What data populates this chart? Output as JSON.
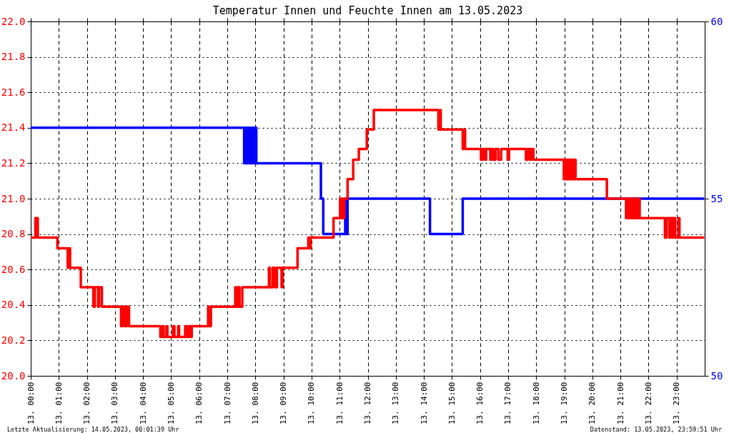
{
  "chart_data": {
    "type": "step",
    "title": "Temperatur Innen und Feuchte Innen am 13.05.2023",
    "annotations": [
      "Letzte Aktualisierung: 14.05.2023, 00:01:39 Uhr",
      "Datenstand: 13.05.2023, 23:59:51 Uhr"
    ],
    "xlim": [
      "2023-05-13T00:00",
      "2023-05-14T00:00"
    ],
    "xticks": [
      {
        "value": "2023-05-13T00:00",
        "label": "13. 00:00"
      },
      {
        "value": "2023-05-13T01:00",
        "label": "13. 01:00"
      },
      {
        "value": "2023-05-13T02:00",
        "label": "13. 02:00"
      },
      {
        "value": "2023-05-13T03:00",
        "label": "13. 03:00"
      },
      {
        "value": "2023-05-13T04:00",
        "label": "13. 04:00"
      },
      {
        "value": "2023-05-13T05:00",
        "label": "13. 05:00"
      },
      {
        "value": "2023-05-13T06:00",
        "label": "13. 06:00"
      },
      {
        "value": "2023-05-13T07:00",
        "label": "13. 07:00"
      },
      {
        "value": "2023-05-13T08:00",
        "label": "13. 08:00"
      },
      {
        "value": "2023-05-13T09:00",
        "label": "13. 09:00"
      },
      {
        "value": "2023-05-13T10:00",
        "label": "13. 10:00"
      },
      {
        "value": "2023-05-13T11:00",
        "label": "13. 11:00"
      },
      {
        "value": "2023-05-13T12:00",
        "label": "13. 12:00"
      },
      {
        "value": "2023-05-13T13:00",
        "label": "13. 13:00"
      },
      {
        "value": "2023-05-13T14:00",
        "label": "13. 14:00"
      },
      {
        "value": "2023-05-13T15:00",
        "label": "13. 15:00"
      },
      {
        "value": "2023-05-13T16:00",
        "label": "13. 16:00"
      },
      {
        "value": "2023-05-13T17:00",
        "label": "13. 17:00"
      },
      {
        "value": "2023-05-13T18:00",
        "label": "13. 18:00"
      },
      {
        "value": "2023-05-13T19:00",
        "label": "13. 19:00"
      },
      {
        "value": "2023-05-13T20:00",
        "label": "13. 20:00"
      },
      {
        "value": "2023-05-13T21:00",
        "label": "13. 21:00"
      },
      {
        "value": "2023-05-13T22:00",
        "label": "13. 22:00"
      },
      {
        "value": "2023-05-13T23:00",
        "label": "13. 23:00"
      }
    ],
    "ylim": [
      20,
      22
    ],
    "yticks": [
      {
        "value": 20,
        "label": "20.0"
      },
      20.2,
      20.4,
      20.6,
      20.8,
      {
        "value": 21,
        "label": "21.0"
      },
      21.2,
      21.4,
      21.6,
      21.8,
      {
        "value": 22,
        "label": "22.0"
      }
    ],
    "y2lim": [
      50,
      60
    ],
    "y2ticks": [
      50,
      55,
      60
    ],
    "grid": true,
    "series": [
      {
        "color": "#ff0000",
        "x": [
          "2023-05-13T00:00",
          "2023-05-13T00:10",
          "2023-05-13T00:15",
          "2023-05-13T00:57",
          "2023-05-13T01:19",
          "2023-05-13T01:22",
          "2023-05-13T01:24",
          "2023-05-13T01:47",
          "2023-05-13T02:14",
          "2023-05-13T02:17",
          "2023-05-13T02:24",
          "2023-05-13T02:26",
          "2023-05-13T02:32",
          "2023-05-13T03:13",
          "2023-05-13T03:16",
          "2023-05-13T03:21",
          "2023-05-13T03:25",
          "2023-05-13T03:30",
          "2023-05-13T04:37",
          "2023-05-13T04:42",
          "2023-05-13T04:44",
          "2023-05-13T04:50",
          "2023-05-13T04:52",
          "2023-05-13T05:04",
          "2023-05-13T05:07",
          "2023-05-13T05:15",
          "2023-05-13T05:17",
          "2023-05-13T05:30",
          "2023-05-13T05:33",
          "2023-05-13T05:38",
          "2023-05-13T05:41",
          "2023-05-13T05:44",
          "2023-05-13T06:19",
          "2023-05-13T06:22",
          "2023-05-13T06:25",
          "2023-05-13T07:17",
          "2023-05-13T07:19",
          "2023-05-13T07:23",
          "2023-05-13T07:26",
          "2023-05-13T07:32",
          "2023-05-13T08:29",
          "2023-05-13T08:31",
          "2023-05-13T08:37",
          "2023-05-13T08:42",
          "2023-05-13T08:46",
          "2023-05-13T08:56",
          "2023-05-13T08:58",
          "2023-05-13T09:30",
          "2023-05-13T09:53",
          "2023-05-13T09:56",
          "2023-05-13T09:58",
          "2023-05-13T10:47",
          "2023-05-13T11:01",
          "2023-05-13T11:04",
          "2023-05-13T11:06",
          "2023-05-13T11:08",
          "2023-05-13T11:10",
          "2023-05-13T11:17",
          "2023-05-13T11:29",
          "2023-05-13T11:41",
          "2023-05-13T11:58",
          "2023-05-13T12:13",
          "2023-05-13T14:31",
          "2023-05-13T14:34",
          "2023-05-13T14:36",
          "2023-05-13T15:23",
          "2023-05-13T15:25",
          "2023-05-13T15:28",
          "2023-05-13T16:02",
          "2023-05-13T16:05",
          "2023-05-13T16:10",
          "2023-05-13T16:13",
          "2023-05-13T16:22",
          "2023-05-13T16:25",
          "2023-05-13T16:28",
          "2023-05-13T16:33",
          "2023-05-13T16:39",
          "2023-05-13T16:45",
          "2023-05-13T16:59",
          "2023-05-13T17:02",
          "2023-05-13T17:38",
          "2023-05-13T17:41",
          "2023-05-13T17:46",
          "2023-05-13T17:49",
          "2023-05-13T17:54",
          "2023-05-13T18:59",
          "2023-05-13T19:03",
          "2023-05-13T19:06",
          "2023-05-13T19:09",
          "2023-05-13T19:12",
          "2023-05-13T19:15",
          "2023-05-13T19:18",
          "2023-05-13T19:21",
          "2023-05-13T19:24",
          "2023-05-13T20:31",
          "2023-05-13T21:12",
          "2023-05-13T21:16",
          "2023-05-13T21:20",
          "2023-05-13T21:24",
          "2023-05-13T21:27",
          "2023-05-13T21:31",
          "2023-05-13T21:35",
          "2023-05-13T21:38",
          "2023-05-13T21:41",
          "2023-05-13T22:35",
          "2023-05-13T22:38",
          "2023-05-13T22:44",
          "2023-05-13T22:46",
          "2023-05-13T22:50",
          "2023-05-13T22:52",
          "2023-05-13T22:57",
          "2023-05-13T23:04",
          "2023-05-13T23:06",
          "2023-05-13T23:59"
        ],
        "values": [
          20.78,
          20.89,
          20.78,
          20.72,
          20.61,
          20.72,
          20.61,
          20.5,
          20.39,
          20.5,
          20.39,
          20.5,
          20.39,
          20.28,
          20.39,
          20.28,
          20.39,
          20.28,
          20.22,
          20.28,
          20.22,
          20.28,
          20.22,
          20.28,
          20.22,
          20.28,
          20.22,
          20.28,
          20.22,
          20.28,
          20.22,
          20.28,
          20.39,
          20.28,
          20.39,
          20.5,
          20.39,
          20.5,
          20.39,
          20.5,
          20.61,
          20.5,
          20.61,
          20.5,
          20.61,
          20.5,
          20.61,
          20.72,
          20.78,
          20.72,
          20.78,
          20.89,
          21.0,
          20.89,
          21.0,
          20.89,
          21.0,
          21.11,
          21.22,
          21.28,
          21.39,
          21.5,
          21.39,
          21.5,
          21.39,
          21.28,
          21.39,
          21.28,
          21.22,
          21.28,
          21.22,
          21.28,
          21.22,
          21.28,
          21.22,
          21.28,
          21.22,
          21.28,
          21.22,
          21.28,
          21.22,
          21.28,
          21.22,
          21.28,
          21.22,
          21.11,
          21.22,
          21.11,
          21.22,
          21.11,
          21.22,
          21.11,
          21.22,
          21.11,
          21.0,
          20.89,
          21.0,
          20.89,
          21.0,
          20.89,
          21.0,
          20.89,
          21.0,
          20.89,
          20.78,
          20.89,
          20.78,
          20.89,
          20.78,
          20.89,
          20.78,
          20.89,
          20.78,
          20.78
        ]
      },
      {
        "color": "#0000ff",
        "axis": "y2",
        "x": [
          "2023-05-13T00:00",
          "2023-05-13T07:36",
          "2023-05-13T07:39",
          "2023-05-13T07:42",
          "2023-05-13T07:45",
          "2023-05-13T07:48",
          "2023-05-13T07:51",
          "2023-05-13T07:52",
          "2023-05-13T07:55",
          "2023-05-13T07:58",
          "2023-05-13T08:01",
          "2023-05-13T08:02",
          "2023-05-13T10:20",
          "2023-05-13T10:25",
          "2023-05-13T11:12",
          "2023-05-13T11:14",
          "2023-05-13T11:17",
          "2023-05-13T14:13",
          "2023-05-13T15:23",
          "2023-05-13T23:59"
        ],
        "values": [
          57,
          56,
          57,
          56,
          57,
          56,
          57,
          56,
          57,
          56,
          57,
          56,
          55,
          54,
          55,
          54,
          55,
          54,
          55,
          55
        ]
      }
    ]
  }
}
